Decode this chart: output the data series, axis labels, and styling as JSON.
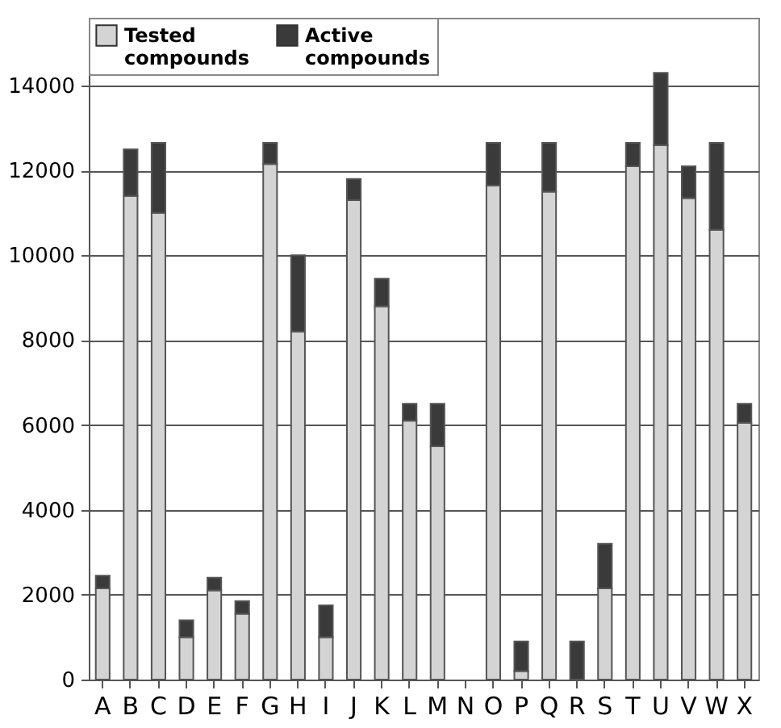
{
  "chart_data": {
    "type": "bar",
    "stacked": true,
    "categories": [
      "A",
      "B",
      "C",
      "D",
      "E",
      "F",
      "G",
      "H",
      "I",
      "J",
      "K",
      "L",
      "M",
      "N",
      "O",
      "P",
      "Q",
      "R",
      "S",
      "T",
      "U",
      "V",
      "W",
      "X"
    ],
    "series": [
      {
        "name": "Tested compounds",
        "color": "#d4d4d4",
        "values": [
          2150,
          11400,
          11000,
          1000,
          2100,
          1550,
          12150,
          8200,
          1000,
          11300,
          8800,
          6100,
          5500,
          null,
          11650,
          200,
          11500,
          0,
          2150,
          12100,
          12600,
          11350,
          10600,
          6050
        ]
      },
      {
        "name": "Active compounds",
        "color": "#3a3a3a",
        "values": [
          300,
          1100,
          1650,
          400,
          300,
          300,
          500,
          1800,
          750,
          500,
          650,
          400,
          1000,
          null,
          1000,
          700,
          1150,
          900,
          1050,
          550,
          1700,
          750,
          2050,
          450
        ]
      }
    ],
    "ylim": [
      0,
      15600
    ],
    "yticks": [
      0,
      2000,
      4000,
      6000,
      8000,
      10000,
      12000,
      14000
    ],
    "grid": "y",
    "legend": "top left"
  }
}
